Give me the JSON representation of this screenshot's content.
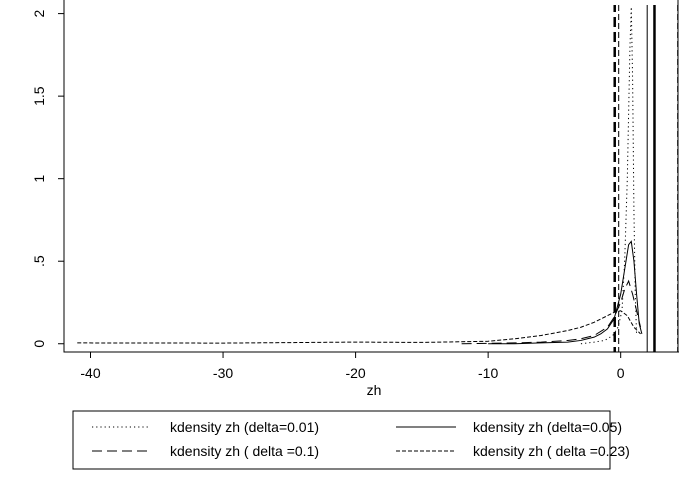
{
  "chart_data": {
    "type": "line",
    "title": "",
    "xlabel": "zh",
    "ylabel": "",
    "xlim": [
      -42,
      4.4
    ],
    "ylim": [
      -0.05,
      2.04
    ],
    "xticks": [
      -40,
      -30,
      -20,
      -10,
      0
    ],
    "xtick_labels": [
      "-40",
      "-30",
      "-20",
      "-10",
      "0"
    ],
    "yticks": [
      0,
      0.5,
      1,
      1.5,
      2
    ],
    "ytick_labels": [
      "0",
      ".5",
      "1",
      "1.5",
      "2"
    ],
    "grid": false,
    "legend_position": "bottom",
    "series": [
      {
        "name": "kdensity zh (delta=0.01)",
        "style": "dotted",
        "x": [
          -3,
          -2,
          -1.2,
          -0.6,
          -0.2,
          0.1,
          0.3,
          0.5,
          0.6,
          0.7,
          0.8,
          0.9,
          1.0,
          1.1,
          1.2
        ],
        "y": [
          0.0,
          0.01,
          0.02,
          0.05,
          0.1,
          0.2,
          0.5,
          1.0,
          1.4,
          1.8,
          2.04,
          1.6,
          0.8,
          0.3,
          0.05
        ]
      },
      {
        "name": "kdensity zh (delta=0.05)",
        "style": "solid",
        "x": [
          -10,
          -8,
          -6,
          -4,
          -3,
          -2.5,
          -2,
          -1.5,
          -1,
          -0.5,
          0,
          0.3,
          0.6,
          0.8,
          1.0,
          1.2,
          1.4,
          1.6
        ],
        "y": [
          0.0,
          0.0,
          0.005,
          0.01,
          0.02,
          0.03,
          0.04,
          0.06,
          0.09,
          0.15,
          0.3,
          0.45,
          0.6,
          0.62,
          0.5,
          0.3,
          0.12,
          0.06
        ]
      },
      {
        "name": "kdensity zh ( delta =0.1)",
        "style": "longdash",
        "x": [
          -12,
          -8,
          -6,
          -4,
          -3,
          -2,
          -1,
          -0.5,
          0,
          0.3,
          0.6,
          0.9,
          1.2,
          1.5
        ],
        "y": [
          0.0,
          0.005,
          0.01,
          0.02,
          0.03,
          0.05,
          0.1,
          0.16,
          0.25,
          0.33,
          0.38,
          0.3,
          0.2,
          0.1
        ]
      },
      {
        "name": "kdensity zh ( delta =0.23)",
        "style": "shortdash",
        "x": [
          -41,
          -30,
          -20,
          -15,
          -10,
          -8,
          -6,
          -4,
          -3,
          -2,
          -1,
          -0.5,
          0,
          0.5,
          1.0,
          1.5
        ],
        "y": [
          0.005,
          0.004,
          0.01,
          0.008,
          0.015,
          0.03,
          0.05,
          0.08,
          0.1,
          0.13,
          0.17,
          0.19,
          0.2,
          0.17,
          0.1,
          0.06
        ]
      }
    ],
    "vertical_lines": [
      {
        "x": -0.45,
        "style": "longdash",
        "width": 2.5
      },
      {
        "x": -0.15,
        "style": "dashed",
        "width": 1
      },
      {
        "x": 2.0,
        "style": "solid",
        "width": 1
      },
      {
        "x": 2.55,
        "style": "solid",
        "width": 2.5
      },
      {
        "x": 4.3,
        "style": "dashed",
        "width": 1
      }
    ]
  }
}
